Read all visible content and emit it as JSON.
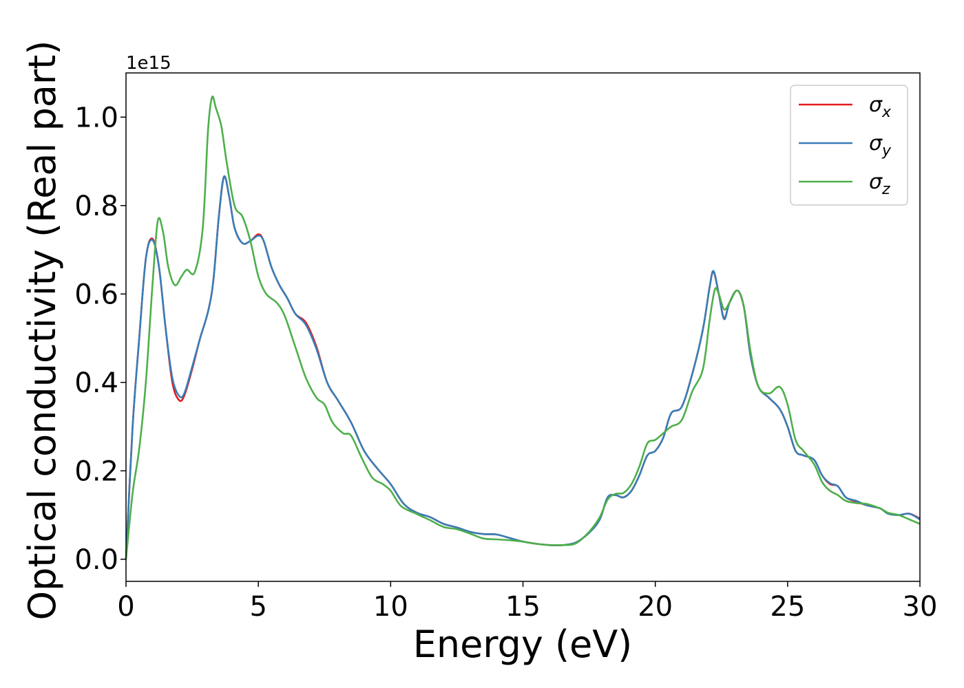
{
  "chart_data": {
    "type": "line",
    "title": "",
    "xlabel": "Energy (eV)",
    "ylabel": "Optical conductivity (Real part)",
    "y_offset_label": "1e15",
    "xlim": [
      0,
      30
    ],
    "ylim": [
      -0.05,
      1.1
    ],
    "x_ticks": [
      0,
      5,
      10,
      15,
      20,
      25,
      30
    ],
    "x_tick_labels": [
      "0",
      "5",
      "10",
      "15",
      "20",
      "25",
      "30"
    ],
    "y_ticks": [
      0.0,
      0.2,
      0.4,
      0.6,
      0.8,
      1.0
    ],
    "y_tick_labels": [
      "0.0",
      "0.2",
      "0.4",
      "0.6",
      "0.8",
      "1.0"
    ],
    "grid": false,
    "legend_position": "top-right",
    "series": [
      {
        "name": "σx",
        "sub": "x",
        "color": "#e41a1c",
        "points": [
          [
            0,
            0
          ],
          [
            0.25,
            0.3
          ],
          [
            0.5,
            0.5
          ],
          [
            0.75,
            0.68
          ],
          [
            1,
            0.725
          ],
          [
            1.25,
            0.66
          ],
          [
            1.5,
            0.52
          ],
          [
            1.75,
            0.4
          ],
          [
            2,
            0.36
          ],
          [
            2.2,
            0.37
          ],
          [
            2.5,
            0.43
          ],
          [
            2.8,
            0.5
          ],
          [
            3.1,
            0.56
          ],
          [
            3.3,
            0.63
          ],
          [
            3.5,
            0.77
          ],
          [
            3.7,
            0.865
          ],
          [
            3.9,
            0.82
          ],
          [
            4.1,
            0.75
          ],
          [
            4.4,
            0.715
          ],
          [
            4.7,
            0.72
          ],
          [
            5,
            0.735
          ],
          [
            5.2,
            0.72
          ],
          [
            5.5,
            0.66
          ],
          [
            5.8,
            0.62
          ],
          [
            6.1,
            0.59
          ],
          [
            6.4,
            0.555
          ],
          [
            6.8,
            0.535
          ],
          [
            7.2,
            0.48
          ],
          [
            7.6,
            0.4
          ],
          [
            8,
            0.36
          ],
          [
            8.5,
            0.31
          ],
          [
            9,
            0.245
          ],
          [
            9.5,
            0.205
          ],
          [
            10,
            0.17
          ],
          [
            10.5,
            0.125
          ],
          [
            11,
            0.105
          ],
          [
            11.5,
            0.095
          ],
          [
            12,
            0.08
          ],
          [
            12.5,
            0.072
          ],
          [
            13,
            0.062
          ],
          [
            13.5,
            0.057
          ],
          [
            14,
            0.056
          ],
          [
            14.5,
            0.048
          ],
          [
            15,
            0.04
          ],
          [
            15.5,
            0.035
          ],
          [
            16,
            0.032
          ],
          [
            16.5,
            0.032
          ],
          [
            17,
            0.038
          ],
          [
            17.5,
            0.06
          ],
          [
            17.9,
            0.09
          ],
          [
            18.2,
            0.14
          ],
          [
            18.5,
            0.145
          ],
          [
            18.8,
            0.14
          ],
          [
            19.1,
            0.155
          ],
          [
            19.4,
            0.19
          ],
          [
            19.7,
            0.235
          ],
          [
            20,
            0.245
          ],
          [
            20.3,
            0.275
          ],
          [
            20.6,
            0.33
          ],
          [
            21,
            0.345
          ],
          [
            21.4,
            0.42
          ],
          [
            21.8,
            0.52
          ],
          [
            22.05,
            0.615
          ],
          [
            22.2,
            0.65
          ],
          [
            22.4,
            0.6
          ],
          [
            22.6,
            0.545
          ],
          [
            22.8,
            0.58
          ],
          [
            23.1,
            0.608
          ],
          [
            23.35,
            0.57
          ],
          [
            23.6,
            0.46
          ],
          [
            23.9,
            0.39
          ],
          [
            24.3,
            0.365
          ],
          [
            24.7,
            0.34
          ],
          [
            25,
            0.3
          ],
          [
            25.3,
            0.245
          ],
          [
            25.6,
            0.235
          ],
          [
            26,
            0.225
          ],
          [
            26.3,
            0.19
          ],
          [
            26.6,
            0.17
          ],
          [
            26.9,
            0.165
          ],
          [
            27.2,
            0.14
          ],
          [
            27.6,
            0.13
          ],
          [
            28,
            0.122
          ],
          [
            28.5,
            0.115
          ],
          [
            28.8,
            0.103
          ],
          [
            29.2,
            0.1
          ],
          [
            29.6,
            0.103
          ],
          [
            30,
            0.092
          ]
        ]
      },
      {
        "name": "σy",
        "sub": "y",
        "color": "#377eb8",
        "points": [
          [
            0,
            0
          ],
          [
            0.25,
            0.3
          ],
          [
            0.5,
            0.5
          ],
          [
            0.75,
            0.68
          ],
          [
            1,
            0.722
          ],
          [
            1.25,
            0.66
          ],
          [
            1.5,
            0.52
          ],
          [
            1.75,
            0.41
          ],
          [
            2,
            0.37
          ],
          [
            2.2,
            0.375
          ],
          [
            2.5,
            0.435
          ],
          [
            2.8,
            0.5
          ],
          [
            3.1,
            0.56
          ],
          [
            3.3,
            0.63
          ],
          [
            3.5,
            0.77
          ],
          [
            3.7,
            0.865
          ],
          [
            3.9,
            0.82
          ],
          [
            4.1,
            0.75
          ],
          [
            4.4,
            0.715
          ],
          [
            4.7,
            0.72
          ],
          [
            5,
            0.732
          ],
          [
            5.2,
            0.72
          ],
          [
            5.5,
            0.66
          ],
          [
            5.8,
            0.62
          ],
          [
            6.1,
            0.59
          ],
          [
            6.4,
            0.555
          ],
          [
            6.8,
            0.53
          ],
          [
            7.2,
            0.475
          ],
          [
            7.6,
            0.4
          ],
          [
            8,
            0.36
          ],
          [
            8.5,
            0.31
          ],
          [
            9,
            0.245
          ],
          [
            9.5,
            0.205
          ],
          [
            10,
            0.17
          ],
          [
            10.5,
            0.125
          ],
          [
            11,
            0.105
          ],
          [
            11.5,
            0.095
          ],
          [
            12,
            0.08
          ],
          [
            12.5,
            0.072
          ],
          [
            13,
            0.062
          ],
          [
            13.5,
            0.057
          ],
          [
            14,
            0.056
          ],
          [
            14.5,
            0.048
          ],
          [
            15,
            0.04
          ],
          [
            15.5,
            0.035
          ],
          [
            16,
            0.032
          ],
          [
            16.5,
            0.032
          ],
          [
            17,
            0.038
          ],
          [
            17.5,
            0.06
          ],
          [
            17.9,
            0.09
          ],
          [
            18.2,
            0.14
          ],
          [
            18.5,
            0.145
          ],
          [
            18.8,
            0.14
          ],
          [
            19.1,
            0.155
          ],
          [
            19.4,
            0.19
          ],
          [
            19.7,
            0.235
          ],
          [
            20,
            0.245
          ],
          [
            20.3,
            0.275
          ],
          [
            20.6,
            0.33
          ],
          [
            21,
            0.345
          ],
          [
            21.4,
            0.42
          ],
          [
            21.8,
            0.52
          ],
          [
            22.05,
            0.615
          ],
          [
            22.2,
            0.652
          ],
          [
            22.4,
            0.6
          ],
          [
            22.6,
            0.543
          ],
          [
            22.8,
            0.58
          ],
          [
            23.1,
            0.608
          ],
          [
            23.35,
            0.57
          ],
          [
            23.6,
            0.46
          ],
          [
            23.9,
            0.39
          ],
          [
            24.3,
            0.365
          ],
          [
            24.7,
            0.34
          ],
          [
            25,
            0.3
          ],
          [
            25.3,
            0.245
          ],
          [
            25.6,
            0.235
          ],
          [
            26,
            0.225
          ],
          [
            26.3,
            0.19
          ],
          [
            26.6,
            0.172
          ],
          [
            26.9,
            0.165
          ],
          [
            27.2,
            0.14
          ],
          [
            27.6,
            0.132
          ],
          [
            28,
            0.122
          ],
          [
            28.5,
            0.115
          ],
          [
            28.8,
            0.103
          ],
          [
            29.2,
            0.1
          ],
          [
            29.6,
            0.103
          ],
          [
            30,
            0.09
          ]
        ]
      },
      {
        "name": "σz",
        "sub": "z",
        "color": "#4daf4a",
        "points": [
          [
            0,
            0
          ],
          [
            0.25,
            0.15
          ],
          [
            0.5,
            0.25
          ],
          [
            0.75,
            0.4
          ],
          [
            1,
            0.62
          ],
          [
            1.2,
            0.765
          ],
          [
            1.4,
            0.74
          ],
          [
            1.6,
            0.66
          ],
          [
            1.85,
            0.62
          ],
          [
            2.1,
            0.64
          ],
          [
            2.3,
            0.655
          ],
          [
            2.6,
            0.65
          ],
          [
            2.9,
            0.75
          ],
          [
            3.1,
            0.97
          ],
          [
            3.25,
            1.045
          ],
          [
            3.4,
            1.02
          ],
          [
            3.6,
            0.98
          ],
          [
            3.8,
            0.9
          ],
          [
            4.1,
            0.8
          ],
          [
            4.4,
            0.775
          ],
          [
            4.7,
            0.72
          ],
          [
            5,
            0.64
          ],
          [
            5.3,
            0.6
          ],
          [
            5.7,
            0.58
          ],
          [
            6,
            0.55
          ],
          [
            6.4,
            0.48
          ],
          [
            6.8,
            0.41
          ],
          [
            7.2,
            0.365
          ],
          [
            7.5,
            0.35
          ],
          [
            7.8,
            0.31
          ],
          [
            8.2,
            0.285
          ],
          [
            8.5,
            0.28
          ],
          [
            8.9,
            0.23
          ],
          [
            9.3,
            0.185
          ],
          [
            9.7,
            0.17
          ],
          [
            10,
            0.155
          ],
          [
            10.4,
            0.12
          ],
          [
            11,
            0.102
          ],
          [
            11.5,
            0.088
          ],
          [
            12,
            0.073
          ],
          [
            12.5,
            0.068
          ],
          [
            13,
            0.058
          ],
          [
            13.5,
            0.047
          ],
          [
            14,
            0.045
          ],
          [
            14.5,
            0.043
          ],
          [
            15,
            0.04
          ],
          [
            15.5,
            0.035
          ],
          [
            16,
            0.032
          ],
          [
            16.5,
            0.032
          ],
          [
            17,
            0.036
          ],
          [
            17.5,
            0.062
          ],
          [
            17.9,
            0.095
          ],
          [
            18.2,
            0.135
          ],
          [
            18.5,
            0.148
          ],
          [
            18.8,
            0.15
          ],
          [
            19.1,
            0.17
          ],
          [
            19.4,
            0.21
          ],
          [
            19.7,
            0.262
          ],
          [
            20,
            0.27
          ],
          [
            20.3,
            0.285
          ],
          [
            20.6,
            0.3
          ],
          [
            21,
            0.315
          ],
          [
            21.4,
            0.38
          ],
          [
            21.8,
            0.43
          ],
          [
            22.05,
            0.54
          ],
          [
            22.25,
            0.61
          ],
          [
            22.4,
            0.6
          ],
          [
            22.6,
            0.565
          ],
          [
            22.8,
            0.58
          ],
          [
            23.1,
            0.608
          ],
          [
            23.35,
            0.57
          ],
          [
            23.6,
            0.47
          ],
          [
            23.9,
            0.39
          ],
          [
            24.3,
            0.375
          ],
          [
            24.7,
            0.39
          ],
          [
            25,
            0.35
          ],
          [
            25.3,
            0.27
          ],
          [
            25.6,
            0.245
          ],
          [
            26,
            0.215
          ],
          [
            26.3,
            0.175
          ],
          [
            26.6,
            0.155
          ],
          [
            26.9,
            0.145
          ],
          [
            27.2,
            0.132
          ],
          [
            27.6,
            0.127
          ],
          [
            28,
            0.125
          ],
          [
            28.5,
            0.115
          ],
          [
            28.8,
            0.105
          ],
          [
            29.2,
            0.1
          ],
          [
            29.6,
            0.09
          ],
          [
            30,
            0.08
          ]
        ]
      }
    ]
  }
}
